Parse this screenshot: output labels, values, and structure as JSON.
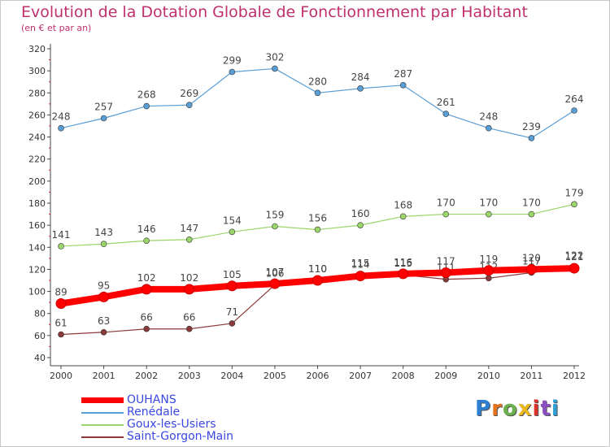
{
  "chart_data": {
    "type": "line",
    "title": "Evolution de la Dotation Globale de Fonctionnement par Habitant",
    "subtitle": "(en € et par an)",
    "xlabel": "",
    "ylabel": "",
    "x": [
      "2000",
      "2001",
      "2002",
      "2003",
      "2004",
      "2005",
      "2006",
      "2007",
      "2008",
      "2009",
      "2010",
      "2011",
      "2012"
    ],
    "yticks": [
      40,
      60,
      80,
      100,
      120,
      140,
      160,
      180,
      200,
      220,
      240,
      260,
      280,
      300,
      320
    ],
    "ylim": [
      40,
      320
    ],
    "grid": false,
    "legend_position": "bottom-left",
    "series": [
      {
        "name": "OUHANS",
        "color": "#ff0000",
        "values": [
          89,
          95,
          102,
          102,
          105,
          107,
          110,
          114,
          116,
          117,
          119,
          120,
          121
        ]
      },
      {
        "name": "Renédale",
        "color": "#5a9ed6",
        "values": [
          248,
          257,
          268,
          269,
          299,
          302,
          280,
          284,
          287,
          261,
          248,
          239,
          264
        ]
      },
      {
        "name": "Goux-les-Usiers",
        "color": "#9ad66a",
        "values": [
          141,
          143,
          146,
          147,
          154,
          159,
          156,
          160,
          168,
          170,
          170,
          170,
          179
        ]
      },
      {
        "name": "Saint-Gorgon-Main",
        "color": "#8a3a3a",
        "values": [
          61,
          63,
          66,
          66,
          71,
          106,
          110,
          115,
          115,
          111,
          112,
          117,
          122
        ]
      }
    ]
  },
  "logo": {
    "letters": [
      "P",
      "r",
      "o",
      "x",
      "i",
      "t",
      "i"
    ],
    "colors": [
      "#2d7fd4",
      "#e8731e",
      "#6ab04c",
      "#e8b81e",
      "#d9342b",
      "#8a4fc0",
      "#2d9fd4"
    ]
  }
}
